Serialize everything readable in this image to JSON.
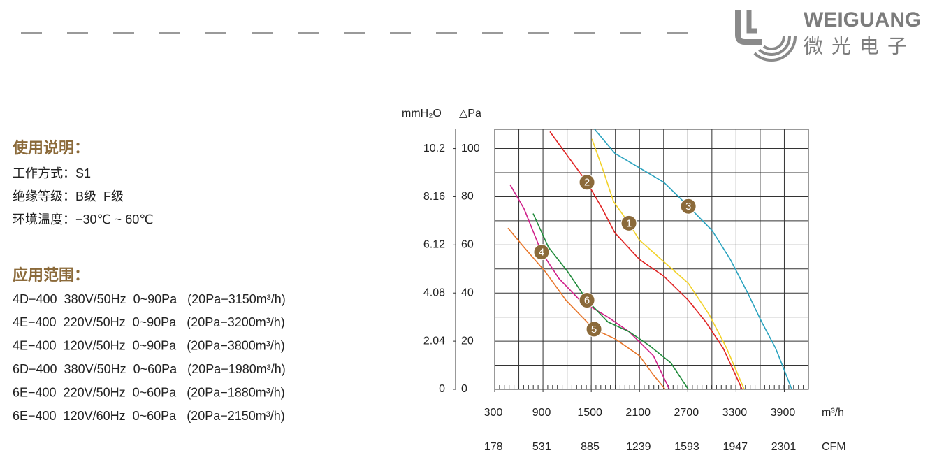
{
  "header": {
    "brand": "WEIGUANG",
    "brand_cn": "微光电子"
  },
  "usage": {
    "title": "使用说明：",
    "lines": [
      "工作方式：S1",
      "绝缘等级：B级  F级",
      "环境温度：−30℃ ~ 60℃"
    ]
  },
  "scope": {
    "title": "应用范围：",
    "lines": [
      "4D−400  380V/50Hz  0~90Pa   (20Pa−3150m³/h)",
      "4E−400  220V/50Hz  0~90Pa   (20Pa−3200m³/h)",
      "4E−400  120V/50Hz  0~90Pa   (20Pa−3800m³/h)",
      "6D−400  380V/50Hz  0~60Pa   (20Pa−1980m³/h)",
      "6E−400  220V/50Hz  0~60Pa   (20Pa−1880m³/h)",
      "6E−400  120V/60Hz  0~60Pa   (20Pa−2150m³/h)"
    ]
  },
  "chart_data": {
    "type": "line",
    "x_label": "m³/h",
    "x2_label": "CFM",
    "y_label": "△Pa",
    "y2_label": "mmH₂O",
    "xlim": [
      300,
      4200
    ],
    "xticks": [
      300,
      900,
      1500,
      2100,
      2700,
      3300,
      3900
    ],
    "x2lim": [
      177,
      2472
    ],
    "x2ticks": [
      178,
      531,
      885,
      1239,
      1593,
      1947,
      2301
    ],
    "ylim": [
      0,
      108
    ],
    "yticks": [
      0,
      20,
      40,
      60,
      80,
      100
    ],
    "y2lim": [
      0,
      11.02
    ],
    "y2ticks": [
      0,
      2.04,
      4.08,
      6.12,
      8.16,
      10.2
    ],
    "grid": true,
    "x_grid": [
      600,
      900,
      1200,
      1500,
      1800,
      2100,
      2400,
      2700,
      3000,
      3300,
      3600,
      3900
    ],
    "y_grid": [
      10,
      20,
      30,
      40,
      50,
      60,
      70,
      80,
      90,
      100
    ],
    "series": [
      {
        "name": "1",
        "color": "#f2d22a",
        "x": [
          1508,
          1638,
          1777,
          1968,
          2098,
          2402,
          2707,
          2967,
          3184,
          3402
        ],
        "values": [
          104,
          92,
          78,
          69,
          62,
          53,
          44,
          31,
          17,
          0
        ]
      },
      {
        "name": "2",
        "color": "#e02424",
        "x": [
          986,
          1204,
          1447,
          1638,
          1794,
          2098,
          2402,
          2707,
          2924,
          3141,
          3376
        ],
        "values": [
          107,
          97,
          86,
          75,
          65,
          54,
          47,
          37,
          28,
          17,
          0
        ]
      },
      {
        "name": "3",
        "color": "#2aa3bf",
        "x": [
          1542,
          1794,
          2098,
          2402,
          2707,
          3002,
          3228,
          3445,
          3619,
          3793,
          3923,
          3993
        ],
        "values": [
          108,
          98,
          92,
          86,
          76,
          66,
          54,
          40,
          28,
          17,
          6,
          0
        ]
      },
      {
        "name": "4",
        "color": "#d0208a",
        "x": [
          491,
          665,
          882,
          1099,
          1360,
          1707,
          1968,
          2272,
          2472
        ],
        "values": [
          85,
          75,
          57,
          46,
          37,
          30,
          24,
          14,
          0
        ]
      },
      {
        "name": "5",
        "color": "#e8762a",
        "x": [
          465,
          665,
          925,
          1186,
          1534,
          1794,
          2098,
          2272,
          2420
        ],
        "values": [
          67,
          59,
          49,
          37,
          25,
          21,
          14,
          6,
          0
        ]
      },
      {
        "name": "6",
        "color": "#1f8a3a",
        "x": [
          778,
          969,
          1204,
          1447,
          1707,
          1968,
          2229,
          2489,
          2707
        ],
        "values": [
          73,
          59,
          49,
          37,
          28,
          24,
          18,
          11,
          0
        ]
      }
    ]
  }
}
